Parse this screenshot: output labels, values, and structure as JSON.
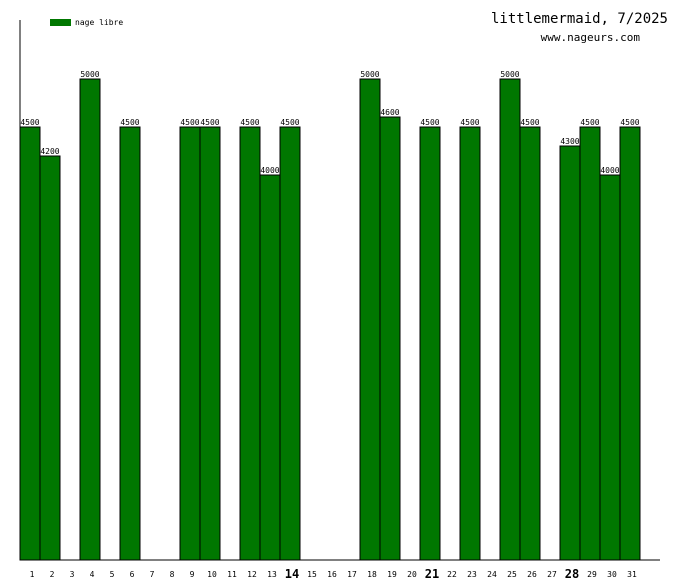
{
  "header": {
    "title": "littlemermaid, 7/2025",
    "site": "www.nageurs.com"
  },
  "colors": {
    "bar": "#007700",
    "bar_stroke": "#000000",
    "axis": "#000000"
  },
  "chart_data": {
    "type": "bar",
    "categories": [
      "1",
      "2",
      "3",
      "4",
      "5",
      "6",
      "7",
      "8",
      "9",
      "10",
      "11",
      "12",
      "13",
      "14",
      "15",
      "16",
      "17",
      "18",
      "19",
      "20",
      "21",
      "22",
      "23",
      "24",
      "25",
      "26",
      "27",
      "28",
      "29",
      "30",
      "31"
    ],
    "emphasized_categories": [
      "14",
      "21",
      "28"
    ],
    "series": [
      {
        "name": "nage libre",
        "values": [
          4500,
          4200,
          null,
          5000,
          null,
          4500,
          null,
          null,
          4500,
          4500,
          null,
          4500,
          4000,
          4500,
          null,
          null,
          null,
          5000,
          4600,
          null,
          4500,
          null,
          4500,
          null,
          5000,
          4500,
          null,
          4300,
          4500,
          4000,
          4500
        ]
      }
    ],
    "ylim": [
      0,
      5000
    ],
    "grid": false,
    "legend_position": "top-left",
    "xlabel": "",
    "ylabel": ""
  }
}
